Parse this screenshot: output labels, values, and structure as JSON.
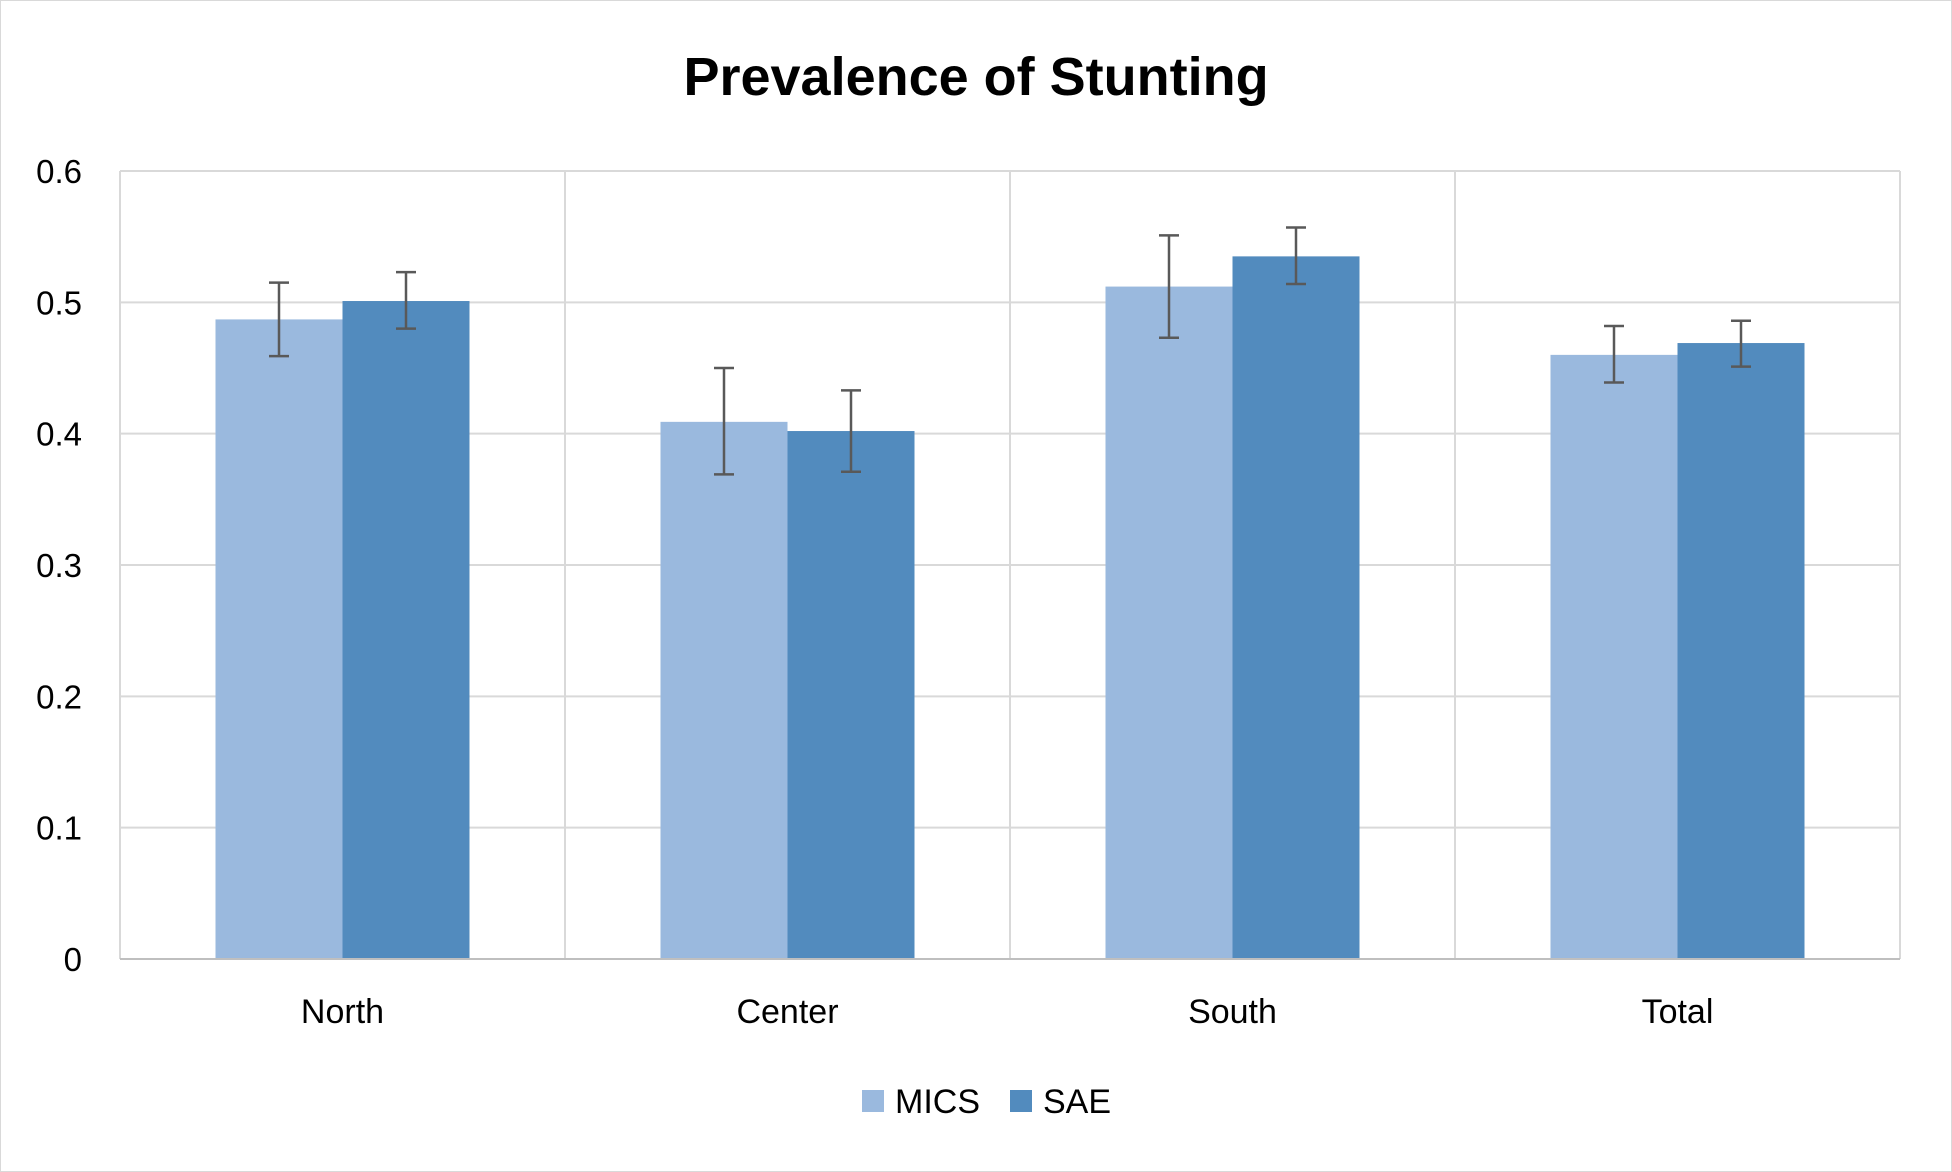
{
  "chart_data": {
    "type": "bar",
    "title": "Prevalence of Stunting",
    "xlabel": "",
    "ylabel": "",
    "categories": [
      "North",
      "Center",
      "South",
      "Total"
    ],
    "ylim": [
      0,
      0.6
    ],
    "yticks": [
      0,
      0.1,
      0.2,
      0.3,
      0.4,
      0.5,
      0.6
    ],
    "ytick_labels": [
      "0",
      "0.1",
      "0.2",
      "0.3",
      "0.4",
      "0.5",
      "0.6"
    ],
    "grid": true,
    "legend_position": "bottom",
    "series": [
      {
        "name": "MICS",
        "color": "#9ab9de",
        "values": [
          0.487,
          0.409,
          0.512,
          0.46
        ],
        "error_low": [
          0.459,
          0.369,
          0.473,
          0.439
        ],
        "error_high": [
          0.515,
          0.45,
          0.551,
          0.482
        ]
      },
      {
        "name": "SAE",
        "color": "#528bbe",
        "values": [
          0.501,
          0.402,
          0.535,
          0.469
        ],
        "error_low": [
          0.48,
          0.371,
          0.514,
          0.451
        ],
        "error_high": [
          0.523,
          0.433,
          0.557,
          0.486
        ]
      }
    ]
  }
}
